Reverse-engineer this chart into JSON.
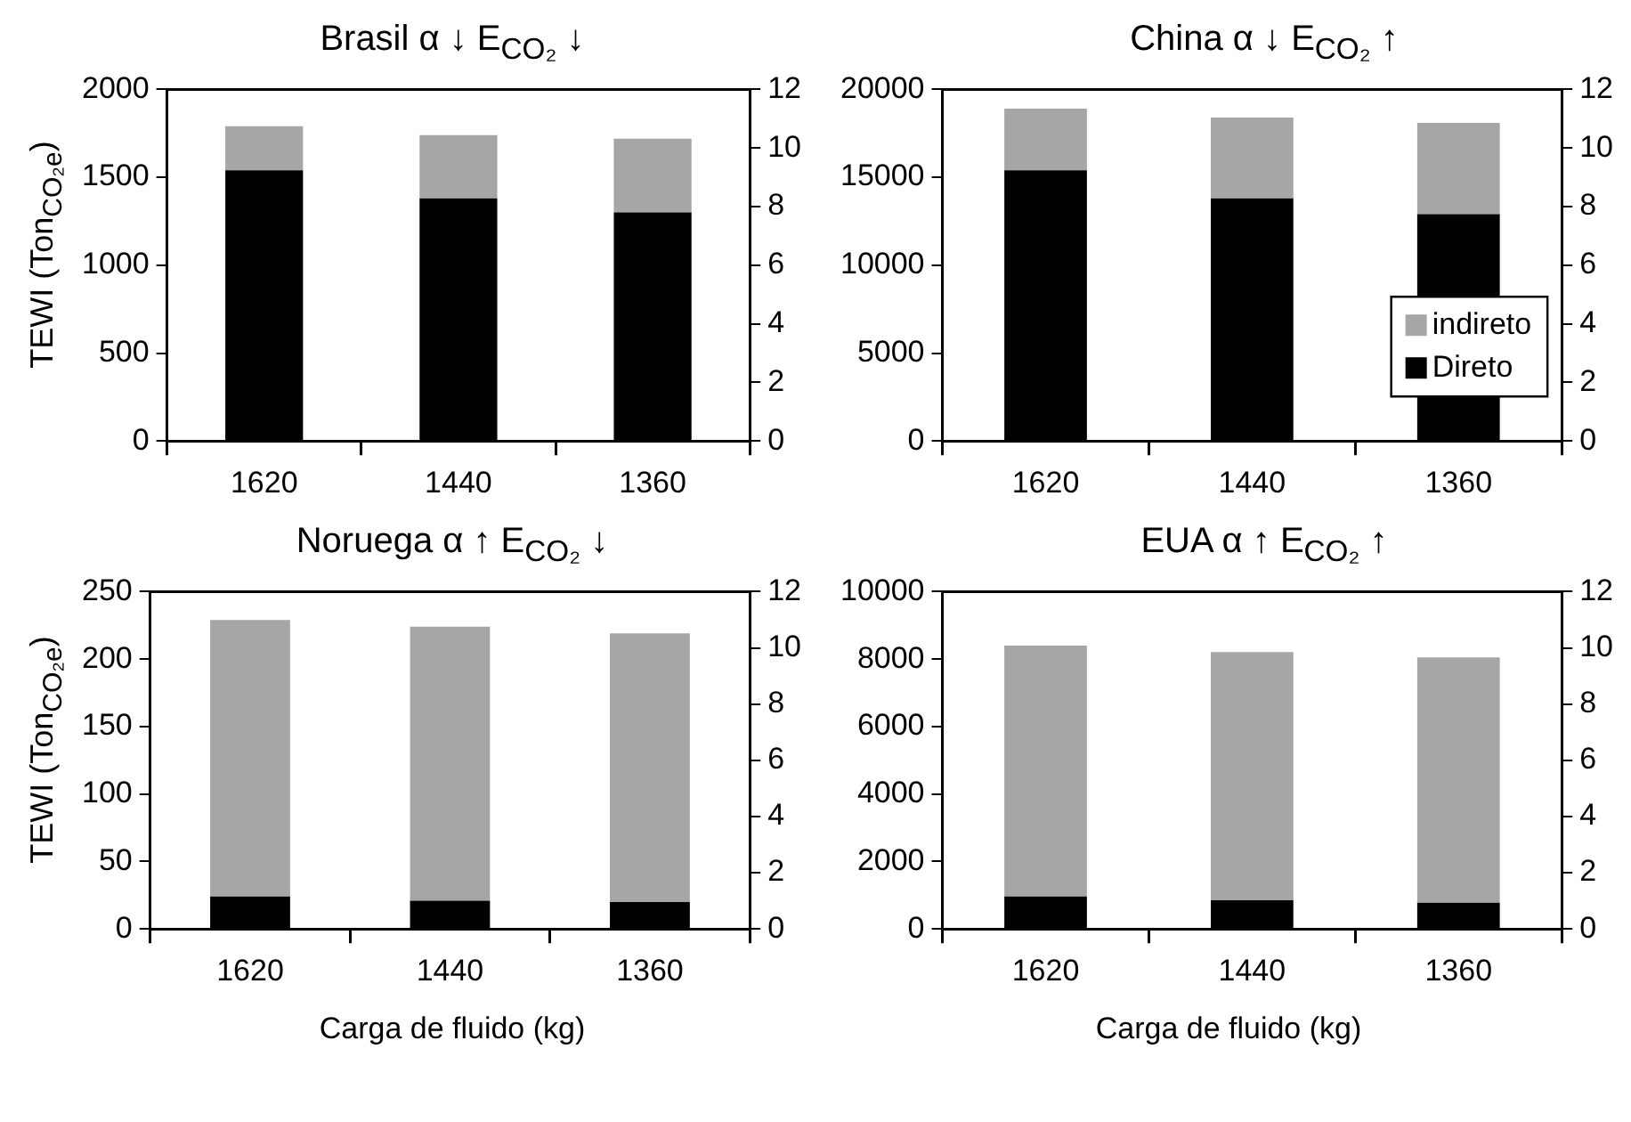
{
  "chart_data": [
    {
      "type": "bar",
      "title": "Brasil α ↓ E$_{CO₂}$ ↓",
      "ylabel": "TEWI (Ton$_{CO₂e}$)",
      "categories": [
        "1620",
        "1440",
        "1360"
      ],
      "stacked": true,
      "series": [
        {
          "color": "#000000",
          "values": [
            1540,
            1380,
            1300
          ]
        },
        {
          "color": "#a6a6a6",
          "values": [
            250,
            360,
            420
          ]
        }
      ],
      "ylim": [
        0,
        2000
      ],
      "yticks": [
        0,
        500,
        1000,
        1500,
        2000
      ],
      "y2lim": [
        0,
        12
      ],
      "y2ticks": [
        0,
        2,
        4,
        6,
        8,
        10,
        12
      ],
      "grid": false,
      "legend": false
    },
    {
      "type": "bar",
      "title": "China α ↓ E$_{CO₂}$ ↑",
      "categories": [
        "1620",
        "1440",
        "1360"
      ],
      "stacked": true,
      "series": [
        {
          "name": "Direto",
          "color": "#000000",
          "values": [
            15400,
            13800,
            12900
          ]
        },
        {
          "name": "indireto",
          "color": "#a6a6a6",
          "values": [
            3500,
            4600,
            5200
          ]
        }
      ],
      "ylim": [
        0,
        20000
      ],
      "yticks": [
        0,
        5000,
        10000,
        15000,
        20000
      ],
      "y2lim": [
        0,
        12
      ],
      "y2ticks": [
        0,
        2,
        4,
        6,
        8,
        10,
        12
      ],
      "grid": false,
      "legend": "bottom right"
    },
    {
      "type": "bar",
      "title": "Noruega α ↑ E$_{CO₂}$ ↓",
      "ylabel": "TEWI (Ton$_{CO₂e}$)",
      "xlabel": "Carga de fluido (kg)",
      "categories": [
        "1620",
        "1440",
        "1360"
      ],
      "stacked": true,
      "series": [
        {
          "color": "#000000",
          "values": [
            24,
            21,
            20
          ]
        },
        {
          "color": "#a6a6a6",
          "values": [
            205,
            203,
            199
          ]
        }
      ],
      "ylim": [
        0,
        250
      ],
      "yticks": [
        0,
        50,
        100,
        150,
        200,
        250
      ],
      "y2lim": [
        0,
        12
      ],
      "y2ticks": [
        0,
        2,
        4,
        6,
        8,
        10,
        12
      ],
      "grid": false,
      "legend": false
    },
    {
      "type": "bar",
      "title": "EUA α ↑ E$_{CO₂}$ ↑",
      "xlabel": "Carga de fluido (kg)",
      "categories": [
        "1620",
        "1440",
        "1360"
      ],
      "stacked": true,
      "series": [
        {
          "color": "#000000",
          "values": [
            960,
            850,
            780
          ]
        },
        {
          "color": "#a6a6a6",
          "values": [
            7440,
            7360,
            7270
          ]
        }
      ],
      "ylim": [
        0,
        10000
      ],
      "yticks": [
        0,
        2000,
        4000,
        6000,
        8000,
        10000
      ],
      "y2lim": [
        0,
        12
      ],
      "y2ticks": [
        0,
        2,
        4,
        6,
        8,
        10,
        12
      ],
      "grid": false,
      "legend": false
    }
  ]
}
